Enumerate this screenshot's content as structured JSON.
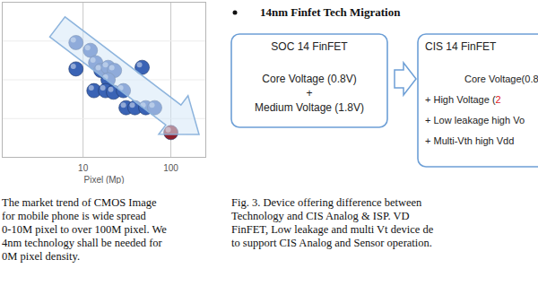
{
  "chart_data": {
    "type": "scatter",
    "x": [
      8.3,
      8.3,
      12.1,
      13.9,
      16.0,
      19.3,
      22.8,
      19.3,
      13.3,
      18.0,
      22.2,
      28.8,
      47.1,
      30.9,
      39.0,
      51.8,
      65.4,
      100
    ],
    "values": [
      74,
      57,
      69,
      61,
      56,
      58,
      56,
      50,
      43,
      43,
      42,
      43,
      58,
      32,
      32,
      32,
      32,
      16
    ],
    "colors": [
      "#3a63b5",
      "#3a63b5",
      "#3a63b5",
      "#3a63b5",
      "#3a63b5",
      "#3a63b5",
      "#3a63b5",
      "#3a63b5",
      "#3a63b5",
      "#3a63b5",
      "#3a63b5",
      "#3a63b5",
      "#3a63b5",
      "#3a63b5",
      "#3a63b5",
      "#3a63b5",
      "#3a63b5",
      "#8e1f2c"
    ],
    "xlabel": "Pixel (Mp)",
    "log": "x",
    "xlim": [
      1.2,
      250
    ],
    "xticks": [
      10,
      100
    ],
    "ylim": [
      0,
      100
    ],
    "yticks": [
      0,
      25,
      50,
      75,
      100
    ],
    "grid": true,
    "tick_labels": "x",
    "marker": "circle"
  },
  "figure2_caption": [
    "The market trend of CMOS Image",
    "for mobile phone is wide spread",
    "0-10M pixel to over 100M pixel. We",
    "4nm technology shall be needed for",
    "0M pixel density."
  ],
  "heading": "14nm Finfet Tech Migration",
  "diagram": {
    "source": {
      "title": "SOC 14 FinFET",
      "lines": [
        "Core Voltage (0.8V)",
        "+",
        "Medium Voltage (1.8V)"
      ]
    },
    "target": {
      "title": "CIS 14 FinFET",
      "lines": [
        [
          {
            "text": "Core Voltage(0.8",
            "color": "#222222"
          }
        ],
        [
          {
            "text": "+ High Voltage (",
            "color": "#222222"
          },
          {
            "text": "2",
            "color": "#e0161b"
          }
        ],
        [
          {
            "text": "+ Low leakage high Vo",
            "color": "#222222"
          }
        ],
        [
          {
            "text": "+ Multi-Vth high Vdd",
            "color": "#222222"
          }
        ]
      ]
    }
  },
  "figure3_caption": [
    "Fig. 3. Device offering difference between",
    "Technology and CIS Analog & ISP. VD",
    "FinFET, Low leakage and multi Vt device de",
    "to support CIS Analog and Sensor operation."
  ]
}
